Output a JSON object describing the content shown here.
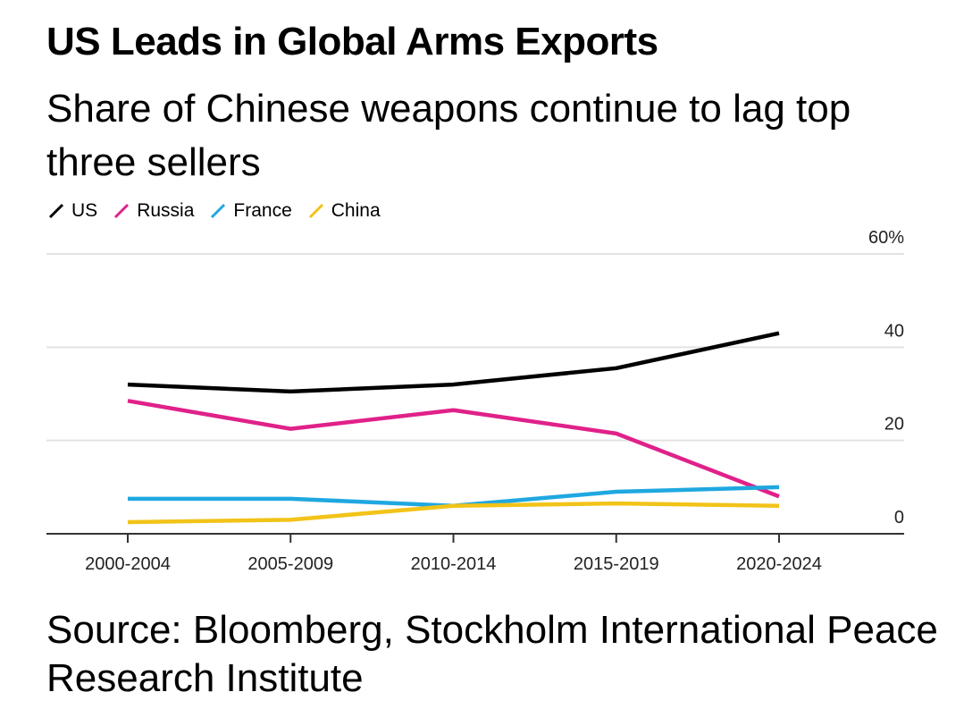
{
  "chart_data": {
    "type": "line",
    "title": "US Leads in Global Arms Exports",
    "subtitle": "Share of Chinese weapons continue to lag top three sellers",
    "categories": [
      "2000-2004",
      "2005-2009",
      "2010-2014",
      "2015-2019",
      "2020-2024"
    ],
    "yticks": [
      "0",
      "20",
      "40",
      "60%"
    ],
    "ytick_values": [
      0,
      20,
      40,
      60
    ],
    "ylim": [
      0,
      60
    ],
    "grid": true,
    "legend_position": "top-left",
    "series": [
      {
        "name": "US",
        "color": "#000000",
        "values": [
          32,
          30.5,
          32,
          35.5,
          43
        ]
      },
      {
        "name": "Russia",
        "color": "#e0218a",
        "values": [
          28.5,
          22.5,
          26.5,
          21.5,
          8
        ]
      },
      {
        "name": "France",
        "color": "#1fa8e0",
        "values": [
          7.5,
          7.5,
          6,
          9,
          10
        ]
      },
      {
        "name": "China",
        "color": "#f2c318",
        "values": [
          2.5,
          3,
          6,
          6.5,
          6
        ]
      }
    ]
  },
  "source": "Source: Bloomberg, Stockholm International Peace Research Institute"
}
